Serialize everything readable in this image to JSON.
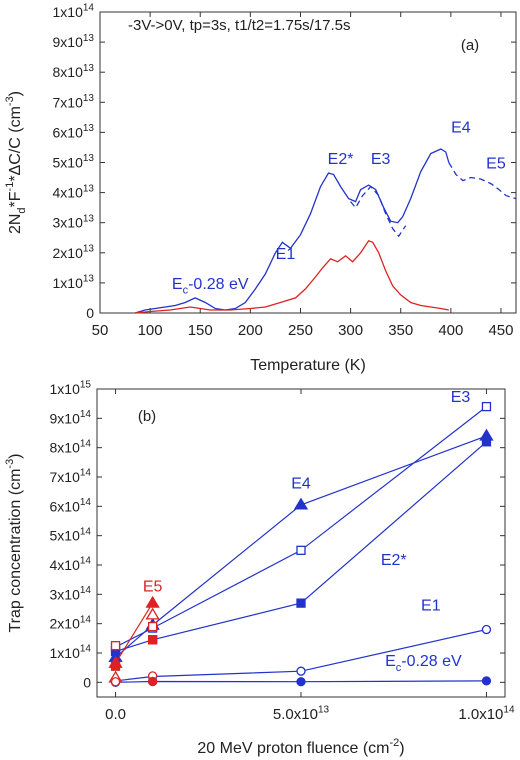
{
  "chart_data": [
    {
      "type": "line",
      "panel_label": "(a)",
      "annotation": "-3V->0V, tp=3s, t1/t2=1.75s/17.5s",
      "xlabel": "Temperature (K)",
      "ylabel": "2N_d*F^-1*ΔC/C (cm^-3)",
      "xlim": [
        50,
        465
      ],
      "ylim": [
        0,
        100000000000000.0
      ],
      "x_ticks": [
        50,
        100,
        150,
        200,
        250,
        300,
        350,
        400,
        450
      ],
      "y_ticks": [
        {
          "value": 0,
          "label": "0"
        },
        {
          "value": 10000000000000.0,
          "label": "1x10^13"
        },
        {
          "value": 20000000000000.0,
          "label": "2x10^13"
        },
        {
          "value": 30000000000000.0,
          "label": "3x10^13"
        },
        {
          "value": 40000000000000.0,
          "label": "4x10^13"
        },
        {
          "value": 50000000000000.0,
          "label": "5x10^13"
        },
        {
          "value": 60000000000000.0,
          "label": "6x10^13"
        },
        {
          "value": 70000000000000.0,
          "label": "7x10^13"
        },
        {
          "value": 80000000000000.0,
          "label": "8x10^13"
        },
        {
          "value": 90000000000000.0,
          "label": "9x10^13"
        },
        {
          "value": 100000000000000.0,
          "label": "1x10^14"
        }
      ],
      "peak_labels": [
        {
          "text": "E_c-0.28 eV",
          "x": 160,
          "y": 8000000000000.0,
          "color": "#2233cc"
        },
        {
          "text": "E1",
          "x": 235,
          "y": 18000000000000.0,
          "color": "#2233cc"
        },
        {
          "text": "E2*",
          "x": 290,
          "y": 49500000000000.0,
          "color": "#2233cc"
        },
        {
          "text": "E3",
          "x": 330,
          "y": 49500000000000.0,
          "color": "#2233cc"
        },
        {
          "text": "E4",
          "x": 410,
          "y": 60000000000000.0,
          "color": "#2233cc"
        },
        {
          "text": "E5",
          "x": 445,
          "y": 48000000000000.0,
          "color": "#2233cc"
        }
      ],
      "series": [
        {
          "color": "#2233cc",
          "dash": "none",
          "x": [
            85,
            95,
            105,
            115,
            125,
            135,
            145,
            155,
            165,
            175,
            185,
            195,
            205,
            215,
            225,
            232,
            240,
            250,
            260,
            270,
            278,
            283,
            290,
            298,
            305,
            310,
            318,
            325,
            333,
            340,
            347,
            352,
            360,
            370,
            380,
            390,
            395,
            398
          ],
          "y": [
            0,
            1000000000000.0,
            1500000000000.0,
            2000000000000.0,
            2500000000000.0,
            3500000000000.0,
            5000000000000.0,
            3500000000000.0,
            1500000000000.0,
            1000000000000.0,
            1500000000000.0,
            3500000000000.0,
            8000000000000.0,
            13000000000000.0,
            20000000000000.0,
            23500000000000.0,
            21500000000000.0,
            26000000000000.0,
            33000000000000.0,
            42000000000000.0,
            46500000000000.0,
            46000000000000.0,
            42000000000000.0,
            38000000000000.0,
            37000000000000.0,
            41000000000000.0,
            42500000000000.0,
            41000000000000.0,
            35000000000000.0,
            30500000000000.0,
            30000000000000.0,
            32000000000000.0,
            38000000000000.0,
            47000000000000.0,
            53000000000000.0,
            54500000000000.0,
            53500000000000.0,
            50000000000000.0
          ]
        },
        {
          "color": "#2233cc",
          "dash": "6,4",
          "x": [
            300,
            305,
            312,
            320,
            328,
            335,
            342,
            348,
            355
          ],
          "y": [
            37000000000000.0,
            35000000000000.0,
            39000000000000.0,
            42000000000000.0,
            39000000000000.0,
            33000000000000.0,
            28000000000000.0,
            25500000000000.0,
            29000000000000.0
          ],
          "legend": false
        },
        {
          "color": "#2233cc",
          "dash": "6,4",
          "x": [
            398,
            405,
            412,
            420,
            430,
            440,
            448,
            455,
            460,
            465
          ],
          "y": [
            50000000000000.0,
            46000000000000.0,
            44000000000000.0,
            45000000000000.0,
            44500000000000.0,
            43000000000000.0,
            41000000000000.0,
            39000000000000.0,
            38500000000000.0,
            38000000000000.0
          ]
        },
        {
          "color": "#dd2222",
          "dash": "none",
          "x": [
            85,
            100,
            120,
            140,
            160,
            180,
            200,
            215,
            230,
            245,
            255,
            265,
            272,
            280,
            287,
            295,
            302,
            310,
            318,
            322,
            328,
            335,
            342,
            350,
            360,
            370,
            380,
            390,
            398
          ],
          "y": [
            0,
            500000000000.0,
            1000000000000.0,
            2000000000000.0,
            1000000000000.0,
            1000000000000.0,
            1500000000000.0,
            2000000000000.0,
            3500000000000.0,
            5000000000000.0,
            8000000000000.0,
            12000000000000.0,
            15000000000000.0,
            18000000000000.0,
            17000000000000.0,
            19000000000000.0,
            17000000000000.0,
            20000000000000.0,
            24000000000000.0,
            23500000000000.0,
            20000000000000.0,
            14000000000000.0,
            9000000000000.0,
            6000000000000.0,
            3500000000000.0,
            2500000000000.0,
            2000000000000.0,
            1500000000000.0,
            1000000000000.0
          ]
        }
      ]
    },
    {
      "type": "line",
      "panel_label": "(b)",
      "xlabel": "20 MeV proton fluence (cm^-2)",
      "ylabel": "Trap concentration (cm^-3)",
      "xlim": [
        -5000000000000.0,
        105000000000000.0
      ],
      "ylim": [
        -50000000000000.0,
        1000000000000000.0
      ],
      "x_ticks": [
        {
          "value": 0,
          "label": "0.0"
        },
        {
          "value": 50000000000000.0,
          "label": "5.0x10^13"
        },
        {
          "value": 100000000000000.0,
          "label": "1.0x10^14"
        }
      ],
      "y_ticks": [
        {
          "value": 0,
          "label": "0"
        },
        {
          "value": 100000000000000.0,
          "label": "1x10^14"
        },
        {
          "value": 200000000000000.0,
          "label": "2x10^14"
        },
        {
          "value": 300000000000000.0,
          "label": "3x10^14"
        },
        {
          "value": 400000000000000.0,
          "label": "4x10^14"
        },
        {
          "value": 500000000000000.0,
          "label": "5x10^14"
        },
        {
          "value": 600000000000000.0,
          "label": "6x10^14"
        },
        {
          "value": 700000000000000.0,
          "label": "7x10^14"
        },
        {
          "value": 800000000000000.0,
          "label": "8x10^14"
        },
        {
          "value": 900000000000000.0,
          "label": "9x10^14"
        },
        {
          "value": 1000000000000000.0,
          "label": "1x10^15"
        }
      ],
      "series": [
        {
          "name": "E4",
          "marker": "triangle",
          "filled": true,
          "x": [
            0,
            10000000000000.0,
            50000000000000.0,
            100000000000000.0
          ],
          "y": [
            85000000000000.0,
            195000000000000.0,
            605000000000000.0,
            840000000000000.0
          ],
          "color": "#2233cc"
        },
        {
          "name": "E3",
          "marker": "square",
          "filled": false,
          "x": [
            0,
            10000000000000.0,
            50000000000000.0,
            100000000000000.0
          ],
          "y": [
            120000000000000.0,
            185000000000000.0,
            450000000000000.0,
            940000000000000.0
          ],
          "color": "#2233cc"
        },
        {
          "name": "E2*",
          "marker": "square",
          "filled": true,
          "x": [
            0,
            10000000000000.0,
            50000000000000.0,
            100000000000000.0
          ],
          "y": [
            105000000000000.0,
            145000000000000.0,
            270000000000000.0,
            820000000000000.0
          ],
          "color": "#2233cc"
        },
        {
          "name": "E1",
          "marker": "circle",
          "filled": false,
          "x": [
            0,
            10000000000000.0,
            50000000000000.0,
            100000000000000.0
          ],
          "y": [
            5000000000000.0,
            20000000000000.0,
            38000000000000.0,
            180000000000000.0
          ],
          "color": "#2233cc"
        },
        {
          "name": "E_c-0.28 eV",
          "marker": "circle",
          "filled": true,
          "x": [
            0,
            10000000000000.0,
            50000000000000.0,
            100000000000000.0
          ],
          "y": [
            0,
            3000000000000.0,
            2000000000000.0,
            5000000000000.0
          ],
          "color": "#2233cc"
        },
        {
          "name": "E5",
          "marker": "triangle",
          "filled": true,
          "x": [
            0,
            10000000000000.0
          ],
          "y": [
            65000000000000.0,
            270000000000000.0
          ],
          "color": "#dd2222"
        }
      ],
      "extra_markers": [
        {
          "marker": "triangle",
          "filled": false,
          "x": 10000000000000.0,
          "y": 230000000000000.0,
          "color": "#dd2222"
        },
        {
          "marker": "square",
          "filled": false,
          "x": 10000000000000.0,
          "y": 190000000000000.0,
          "color": "#dd2222"
        },
        {
          "marker": "square",
          "filled": true,
          "x": 10000000000000.0,
          "y": 145000000000000.0,
          "color": "#dd2222"
        },
        {
          "marker": "circle",
          "filled": false,
          "x": 10000000000000.0,
          "y": 22000000000000.0,
          "color": "#dd2222"
        },
        {
          "marker": "circle",
          "filled": true,
          "x": 10000000000000.0,
          "y": 3000000000000.0,
          "color": "#dd2222"
        },
        {
          "marker": "square",
          "filled": false,
          "x": 0,
          "y": 125000000000000.0,
          "color": "#dd2222"
        },
        {
          "marker": "square",
          "filled": true,
          "x": 0,
          "y": 55000000000000.0,
          "color": "#dd2222"
        },
        {
          "marker": "triangle",
          "filled": false,
          "x": 0,
          "y": 15000000000000.0,
          "color": "#dd2222"
        },
        {
          "marker": "circle",
          "filled": false,
          "x": 0,
          "y": 2000000000000.0,
          "color": "#dd2222"
        }
      ],
      "series_labels": [
        {
          "text": "E3",
          "x": 93000000000000.0,
          "y": 955000000000000.0,
          "color": "#2233cc"
        },
        {
          "text": "E4",
          "x": 50000000000000.0,
          "y": 660000000000000.0,
          "color": "#2233cc"
        },
        {
          "text": "E2*",
          "x": 75000000000000.0,
          "y": 400000000000000.0,
          "color": "#2233cc"
        },
        {
          "text": "E1",
          "x": 85000000000000.0,
          "y": 245000000000000.0,
          "color": "#2233cc"
        },
        {
          "text": "E_c-0.28 eV",
          "x": 83000000000000.0,
          "y": 55000000000000.0,
          "color": "#2233cc"
        },
        {
          "text": "E5",
          "x": 10000000000000.0,
          "y": 310000000000000.0,
          "color": "#dd2222"
        }
      ]
    }
  ]
}
